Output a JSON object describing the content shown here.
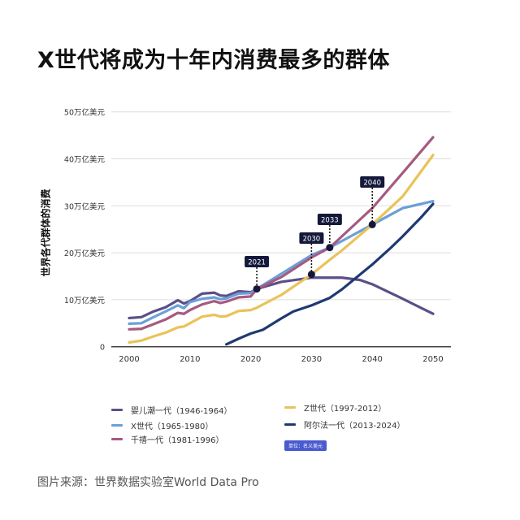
{
  "title": "X世代将成为十年内消费最多的群体",
  "source": "图片来源：世界数据实验室World Data Pro",
  "unit_badge": "单位：名义美元",
  "chart_data": {
    "type": "line",
    "title": "X世代将成为十年内消费最多的群体",
    "xlabel": "",
    "ylabel": "世界各代群体的消费",
    "xlim": [
      2000,
      2050
    ],
    "ylim": [
      0,
      50
    ],
    "xticks": [
      2000,
      2010,
      2020,
      2030,
      2040,
      2050
    ],
    "xtick_labels": [
      "2000",
      "2010",
      "2020",
      "2030",
      "2040",
      "2050"
    ],
    "yticks": [
      0,
      10,
      20,
      30,
      40,
      50
    ],
    "ytick_labels": [
      "0",
      "10万亿美元",
      "20万亿美元",
      "30万亿美元",
      "40万亿美元",
      "50万亿美元"
    ],
    "grid": true,
    "legend_placement": "bottom",
    "series": [
      {
        "name": "婴儿潮一代（1946-1964）",
        "color": "#5b4f87",
        "x": [
          2000,
          2002,
          2004,
          2006,
          2008,
          2009,
          2010,
          2012,
          2014,
          2015,
          2016,
          2018,
          2020,
          2021,
          2025,
          2030,
          2033,
          2035,
          2038,
          2040,
          2045,
          2050
        ],
        "y": [
          6.1,
          6.3,
          7.5,
          8.4,
          9.9,
          9.2,
          9.7,
          11.3,
          11.5,
          10.9,
          10.8,
          11.8,
          11.6,
          12.3,
          13.8,
          14.7,
          14.7,
          14.7,
          14.2,
          13.3,
          10.2,
          7
        ]
      },
      {
        "name": "X世代（1965-1980）",
        "color": "#6b9fd8",
        "x": [
          2000,
          2002,
          2004,
          2006,
          2008,
          2009,
          2010,
          2012,
          2014,
          2015,
          2016,
          2018,
          2020,
          2021,
          2025,
          2030,
          2033,
          2035,
          2040,
          2045,
          2050
        ],
        "y": [
          4.9,
          5.0,
          6.3,
          7.5,
          8.8,
          8.2,
          9.5,
          10.2,
          10.5,
          10.1,
          10.3,
          11.3,
          11.4,
          12.3,
          15.5,
          19.5,
          21.1,
          22.5,
          26,
          29.5,
          31
        ]
      },
      {
        "name": "千禧一代（1981-1996）",
        "color": "#a65a80",
        "x": [
          2000,
          2002,
          2004,
          2006,
          2008,
          2009,
          2010,
          2012,
          2014,
          2015,
          2016,
          2018,
          2020,
          2021,
          2025,
          2030,
          2033,
          2035,
          2040,
          2045,
          2050
        ],
        "y": [
          3.7,
          3.8,
          4.8,
          5.8,
          7.2,
          7,
          7.8,
          9,
          9.7,
          9.3,
          9.6,
          10.5,
          10.7,
          12.3,
          14.8,
          19,
          21.1,
          23.5,
          29.5,
          37,
          44.6
        ]
      },
      {
        "name": "Z世代（1997-2012）",
        "color": "#e9c35a",
        "x": [
          2000,
          2002,
          2004,
          2006,
          2008,
          2009,
          2010,
          2012,
          2014,
          2015,
          2016,
          2018,
          2020,
          2021,
          2025,
          2030,
          2033,
          2035,
          2040,
          2045,
          2050
        ],
        "y": [
          0.9,
          1.3,
          2.2,
          3,
          4.1,
          4.3,
          5,
          6.4,
          6.8,
          6.4,
          6.5,
          7.6,
          7.8,
          8.3,
          11,
          15.4,
          18.5,
          20.5,
          26,
          32,
          40.8
        ]
      },
      {
        "name": "阿尔法一代（2013-2024）",
        "color": "#1f3a72",
        "x": [
          2016,
          2018,
          2020,
          2022,
          2025,
          2027,
          2030,
          2033,
          2035,
          2040,
          2043,
          2045,
          2048,
          2050
        ],
        "y": [
          0.5,
          1.7,
          2.8,
          3.6,
          6,
          7.5,
          8.8,
          10.4,
          12.2,
          17.5,
          21,
          23.5,
          27.5,
          30.4
        ]
      }
    ],
    "annotations": [
      {
        "label": "2021",
        "x": 2021,
        "y": 12.3
      },
      {
        "label": "2030",
        "x": 2030,
        "y": 15.4
      },
      {
        "label": "2033",
        "x": 2033,
        "y": 21.1
      },
      {
        "label": "2040",
        "x": 2040,
        "y": 26
      }
    ]
  }
}
